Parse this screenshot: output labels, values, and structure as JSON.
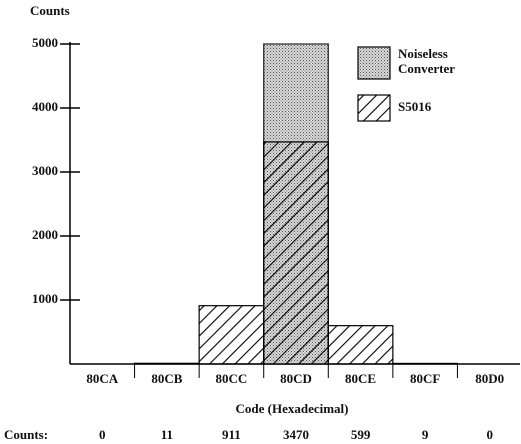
{
  "chart_data": {
    "type": "bar",
    "ylabel": "Counts",
    "xlabel": "Code  (Hexadecimal)",
    "categories": [
      "80CA",
      "80CB",
      "80CC",
      "80CD",
      "80CE",
      "80CF",
      "80D0"
    ],
    "series": [
      {
        "name": "Noiseless Converter",
        "color": "#9a9a9a",
        "values": [
          0,
          0,
          0,
          5000,
          0,
          0,
          0
        ]
      },
      {
        "name": "S5016",
        "color": "#000000",
        "values": [
          0,
          11,
          911,
          3470,
          599,
          9,
          0
        ]
      }
    ],
    "counts_label": "Counts:",
    "ylim": [
      0,
      5000
    ],
    "yticks": [
      1000,
      2000,
      3000,
      4000,
      5000
    ],
    "legend": "upper right"
  }
}
